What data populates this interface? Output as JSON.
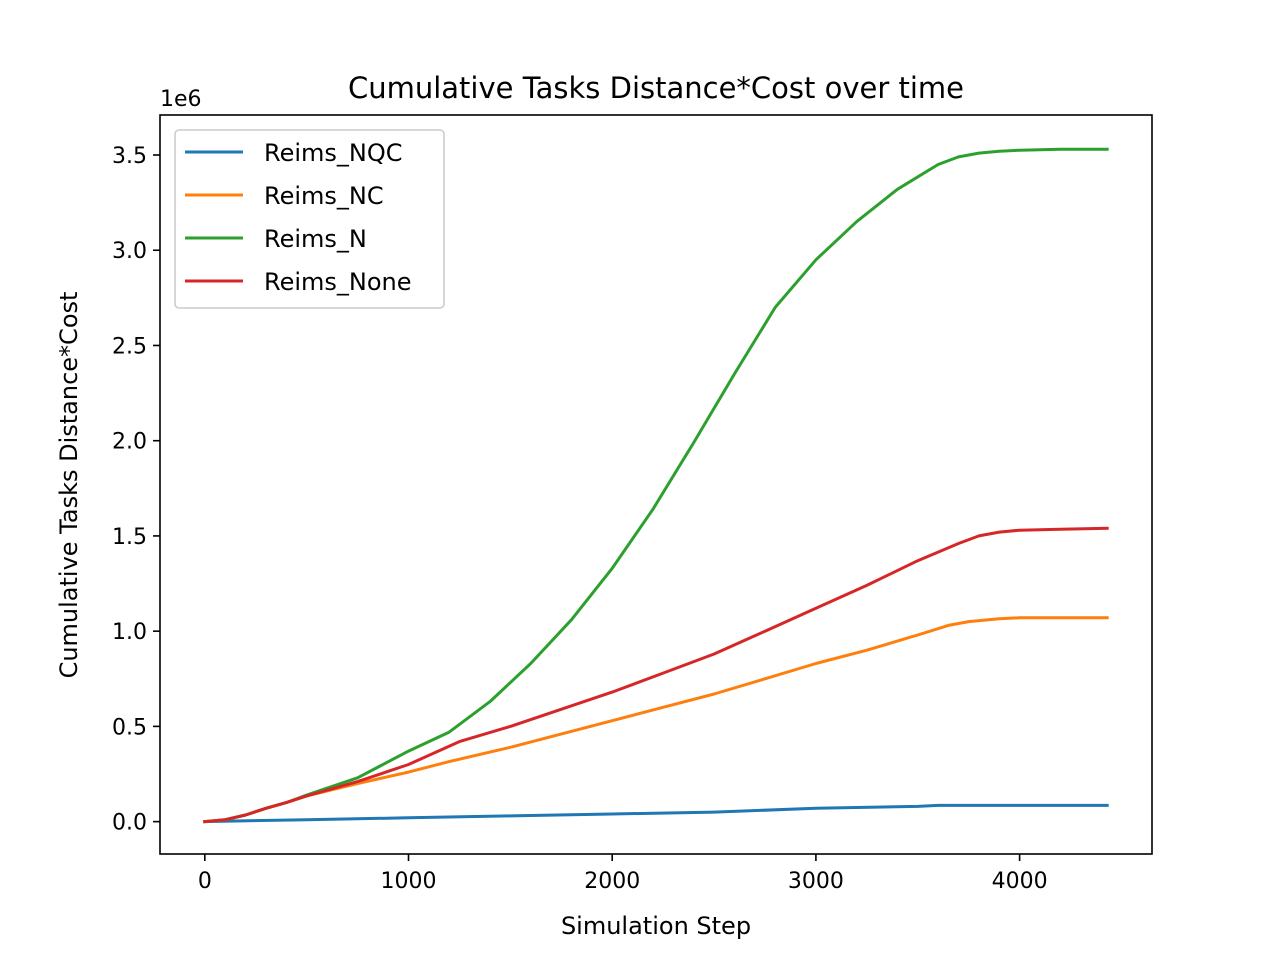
{
  "chart_data": {
    "type": "line",
    "title": "Cumulative Tasks Distance*Cost over time",
    "xlabel": "Simulation Step",
    "ylabel": "Cumulative Tasks Distance*Cost",
    "y_offset_label": "1e6",
    "xlim": [
      -220,
      4650
    ],
    "ylim": [
      -0.17,
      3.71
    ],
    "x_ticks": [
      0,
      1000,
      2000,
      3000,
      4000
    ],
    "x_tick_labels": [
      "0",
      "1000",
      "2000",
      "3000",
      "4000"
    ],
    "y_ticks": [
      0.0,
      0.5,
      1.0,
      1.5,
      2.0,
      2.5,
      3.0,
      3.5
    ],
    "y_tick_labels": [
      "0.0",
      "0.5",
      "1.0",
      "1.5",
      "2.0",
      "2.5",
      "3.0",
      "3.5"
    ],
    "grid": false,
    "legend_position": "upper-left",
    "series": [
      {
        "name": "Reims_NQC",
        "color": "#1f77b4",
        "x": [
          0,
          500,
          1000,
          1500,
          2000,
          2500,
          3000,
          3500,
          3600,
          4000,
          4430
        ],
        "y": [
          0.0,
          0.01,
          0.02,
          0.03,
          0.04,
          0.05,
          0.07,
          0.08,
          0.085,
          0.085,
          0.085
        ]
      },
      {
        "name": "Reims_NC",
        "color": "#ff7f0e",
        "x": [
          0,
          100,
          200,
          300,
          400,
          500,
          750,
          1000,
          1200,
          1500,
          2000,
          2250,
          2500,
          2750,
          3000,
          3250,
          3500,
          3650,
          3750,
          3900,
          4000,
          4200,
          4430
        ],
        "y": [
          0.0,
          0.01,
          0.035,
          0.07,
          0.1,
          0.135,
          0.2,
          0.26,
          0.315,
          0.39,
          0.53,
          0.6,
          0.67,
          0.75,
          0.83,
          0.9,
          0.98,
          1.03,
          1.05,
          1.065,
          1.07,
          1.07,
          1.07
        ]
      },
      {
        "name": "Reims_N",
        "color": "#2ca02c",
        "x": [
          0,
          100,
          200,
          300,
          400,
          500,
          750,
          1000,
          1200,
          1400,
          1600,
          1800,
          2000,
          2200,
          2400,
          2600,
          2800,
          3000,
          3200,
          3400,
          3600,
          3700,
          3800,
          3900,
          4000,
          4200,
          4430
        ],
        "y": [
          0.0,
          0.01,
          0.035,
          0.07,
          0.1,
          0.14,
          0.23,
          0.37,
          0.47,
          0.63,
          0.83,
          1.06,
          1.33,
          1.64,
          1.99,
          2.35,
          2.7,
          2.95,
          3.15,
          3.32,
          3.45,
          3.49,
          3.51,
          3.52,
          3.525,
          3.53,
          3.53
        ]
      },
      {
        "name": "Reims_None",
        "color": "#d62728",
        "x": [
          0,
          100,
          200,
          300,
          400,
          500,
          750,
          1000,
          1250,
          1500,
          2000,
          2250,
          2500,
          2750,
          3000,
          3250,
          3500,
          3700,
          3800,
          3900,
          4000,
          4200,
          4430
        ],
        "y": [
          0.0,
          0.01,
          0.035,
          0.07,
          0.1,
          0.135,
          0.21,
          0.3,
          0.42,
          0.5,
          0.68,
          0.78,
          0.88,
          1.0,
          1.12,
          1.24,
          1.37,
          1.46,
          1.5,
          1.52,
          1.53,
          1.535,
          1.54
        ]
      }
    ]
  }
}
